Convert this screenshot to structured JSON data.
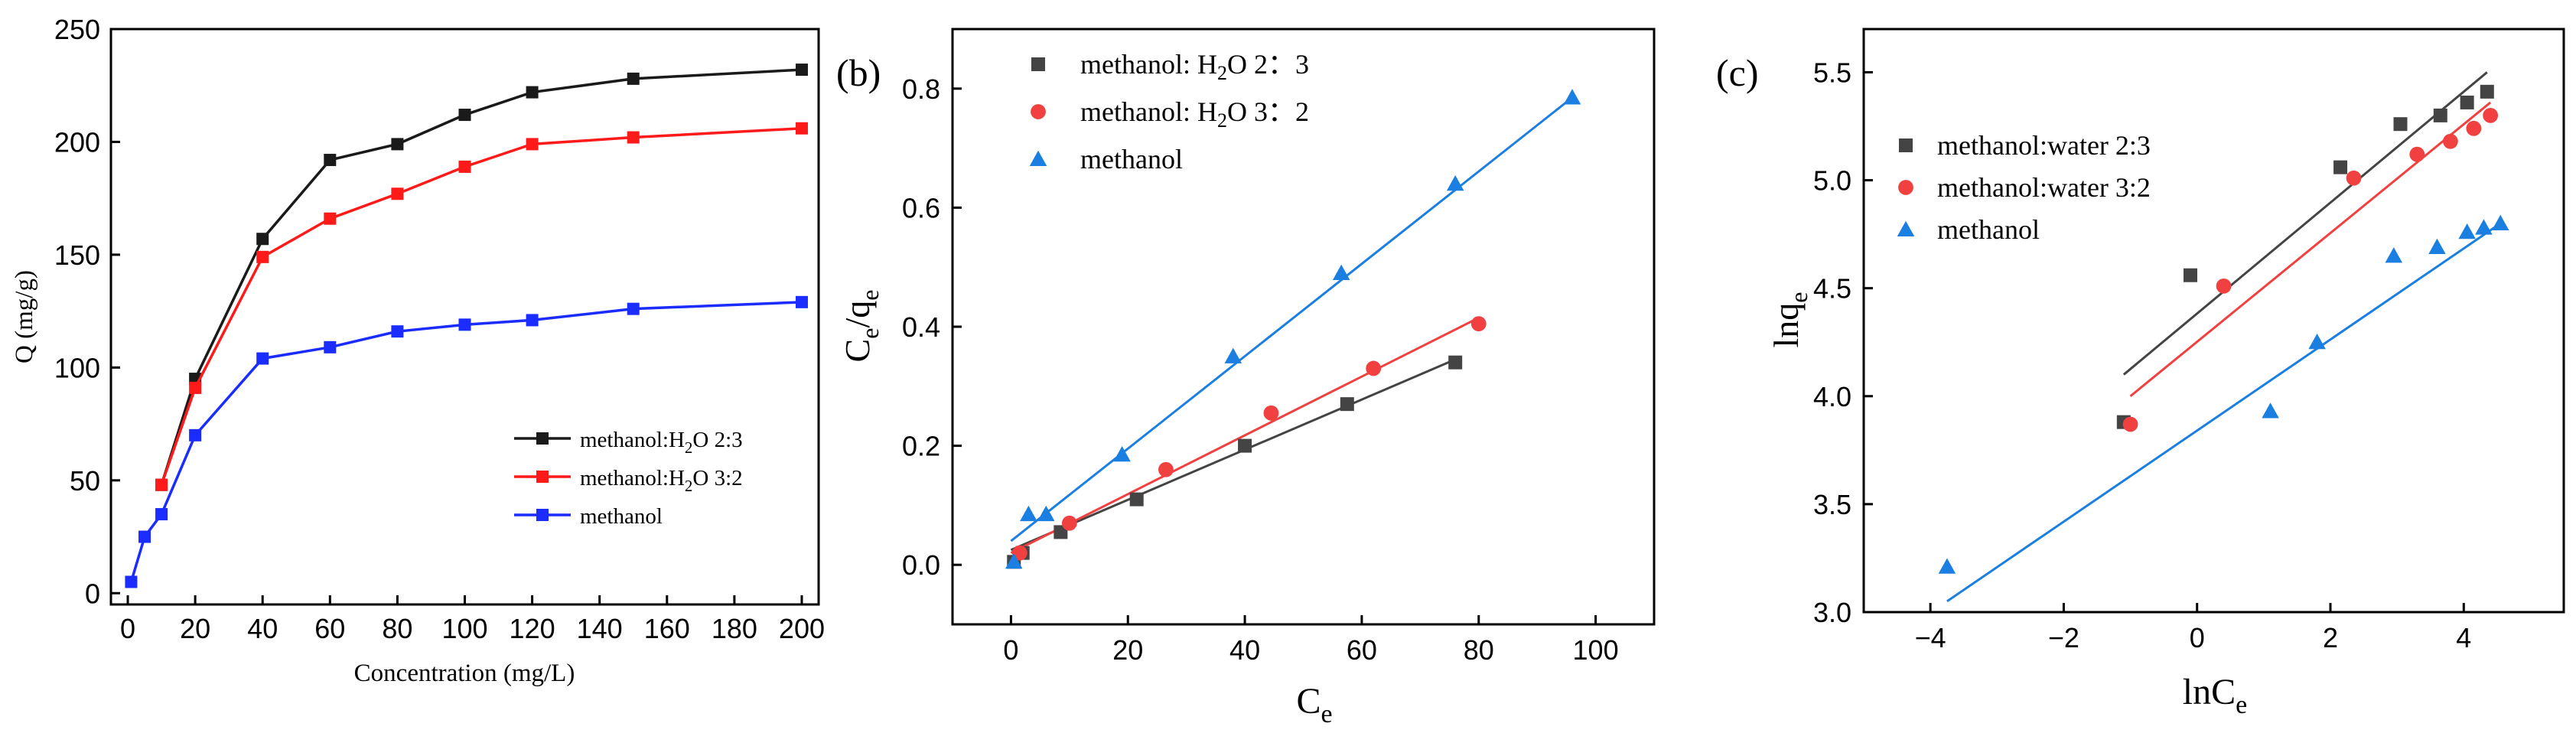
{
  "colors": {
    "black": "#1a1a1a",
    "red": "#ff1a1a",
    "blue": "#1a2cff",
    "gray": "#444444",
    "coral": "#f04040",
    "sky": "#1a7fe0"
  },
  "panel_labels": {
    "b": "(b)",
    "c": "(c)"
  },
  "chart_data": [
    {
      "type": "line",
      "title": "",
      "xlabel": "Concentration (mg/L)",
      "ylabel": "Q (mg/g)",
      "xlim": [
        -5,
        205
      ],
      "ylim": [
        -5,
        250
      ],
      "xticks": [
        0,
        20,
        40,
        60,
        80,
        100,
        120,
        140,
        160,
        180,
        200
      ],
      "yticks": [
        0,
        50,
        100,
        150,
        200,
        250
      ],
      "legend_position": "center-right",
      "series": [
        {
          "name": "methanol:H2O 2:3",
          "label_main": "methanol:H",
          "label_sub": "2",
          "label_rest": "O  2:3",
          "color": "#1a1a1a",
          "x": [
            10,
            20,
            40,
            60,
            80,
            100,
            120,
            150,
            200
          ],
          "y": [
            48,
            95,
            157,
            192,
            199,
            212,
            222,
            228,
            232
          ]
        },
        {
          "name": "methanol:H2O 3:2",
          "label_main": "methanol:H",
          "label_sub": "2",
          "label_rest": "O  3:2",
          "color": "#ff1a1a",
          "x": [
            10,
            20,
            40,
            60,
            80,
            100,
            120,
            150,
            200
          ],
          "y": [
            48,
            91,
            149,
            166,
            177,
            189,
            199,
            202,
            206
          ]
        },
        {
          "name": "methanol",
          "label_main": "methanol",
          "label_sub": "",
          "label_rest": "",
          "color": "#1a2cff",
          "x": [
            1,
            5,
            10,
            20,
            40,
            60,
            80,
            100,
            120,
            150,
            200
          ],
          "y": [
            5,
            25,
            35,
            70,
            104,
            109,
            116,
            119,
            121,
            126,
            129
          ]
        }
      ]
    },
    {
      "type": "scatter",
      "title": "",
      "xlabel": "C",
      "xlabel_sub": "e",
      "ylabel": "C",
      "ylabel_sub": "e",
      "ylabel_mid": "/q",
      "ylabel_sub2": "e",
      "xlim": [
        -10,
        110
      ],
      "ylim": [
        -0.1,
        0.9
      ],
      "xticks": [
        0,
        20,
        40,
        60,
        80,
        100
      ],
      "yticks": [
        0.0,
        0.2,
        0.4,
        0.6,
        0.8
      ],
      "ytick_labels": [
        "0.0",
        "0.2",
        "0.4",
        "0.6",
        "0.8"
      ],
      "legend_position": "top-left",
      "series": [
        {
          "name": "methanol: H2O 2:3",
          "label_main": "methanol: H",
          "label_sub": "2",
          "label_rest": "O 2：3",
          "color": "#444444",
          "marker": "square",
          "x": [
            0.5,
            2,
            8.5,
            21.5,
            40,
            57.5,
            76
          ],
          "y": [
            0.005,
            0.02,
            0.055,
            0.11,
            0.2,
            0.27,
            0.34
          ],
          "fit": {
            "x": [
              0,
              76
            ],
            "y": [
              0.025,
              0.345
            ]
          }
        },
        {
          "name": "methanol: H2O 3:2",
          "label_main": "methanol: H",
          "label_sub": "2",
          "label_rest": "O 3：2",
          "color": "#f04040",
          "marker": "circle",
          "x": [
            1.5,
            10,
            26.5,
            44.5,
            62,
            80
          ],
          "y": [
            0.02,
            0.07,
            0.16,
            0.255,
            0.33,
            0.405
          ],
          "fit": {
            "x": [
              0,
              80
            ],
            "y": [
              0.02,
              0.415
            ]
          }
        },
        {
          "name": "methanol",
          "label_main": "methanol",
          "label_sub": "",
          "label_rest": "",
          "color": "#1a7fe0",
          "marker": "triangle",
          "x": [
            0.5,
            3,
            6,
            19,
            38,
            56.5,
            76,
            96
          ],
          "y": [
            0.005,
            0.085,
            0.085,
            0.185,
            0.35,
            0.49,
            0.64,
            0.785
          ],
          "fit": {
            "x": [
              0,
              96
            ],
            "y": [
              0.04,
              0.785
            ]
          }
        }
      ]
    },
    {
      "type": "scatter",
      "title": "",
      "xlabel": "lnC",
      "xlabel_sub": "e",
      "ylabel": "lnq",
      "ylabel_sub": "e",
      "xlim": [
        -5,
        5.5
      ],
      "ylim": [
        3.0,
        5.7
      ],
      "xticks": [
        -4,
        -2,
        0,
        2,
        4
      ],
      "xtick_labels": [
        "−4",
        "−2",
        "0",
        "2",
        "4"
      ],
      "yticks": [
        3.0,
        3.5,
        4.0,
        4.5,
        5.0,
        5.5
      ],
      "ytick_labels": [
        "3.0",
        "3.5",
        "4.0",
        "4.5",
        "5.0",
        "5.5"
      ],
      "legend_position": "top-left",
      "series": [
        {
          "name": "methanol:water 2:3",
          "label_main": "methanol:water 2:3",
          "color": "#444444",
          "marker": "square",
          "x": [
            -1.1,
            -0.1,
            2.15,
            3.05,
            3.65,
            4.05,
            4.35
          ],
          "y": [
            3.88,
            4.56,
            5.06,
            5.26,
            5.3,
            5.36,
            5.41
          ],
          "fit": {
            "x": [
              -1.1,
              4.35
            ],
            "y": [
              4.1,
              5.5
            ]
          }
        },
        {
          "name": "methanol:water 3:2",
          "label_main": "methanol:water 3:2",
          "color": "#f04040",
          "marker": "circle",
          "x": [
            -1.0,
            0.4,
            2.35,
            3.3,
            3.8,
            4.15,
            4.4
          ],
          "y": [
            3.87,
            4.51,
            5.01,
            5.12,
            5.18,
            5.24,
            5.3
          ],
          "fit": {
            "x": [
              -1.0,
              4.4
            ],
            "y": [
              4.0,
              5.36
            ]
          }
        },
        {
          "name": "methanol",
          "label_main": "methanol",
          "color": "#1a7fe0",
          "marker": "triangle",
          "x": [
            -3.75,
            1.1,
            1.8,
            2.95,
            3.6,
            4.05,
            4.3,
            4.55
          ],
          "y": [
            3.21,
            3.93,
            4.25,
            4.65,
            4.69,
            4.76,
            4.78,
            4.8
          ],
          "fit": {
            "x": [
              -3.75,
              4.55
            ],
            "y": [
              3.05,
              4.8
            ]
          }
        }
      ]
    }
  ]
}
